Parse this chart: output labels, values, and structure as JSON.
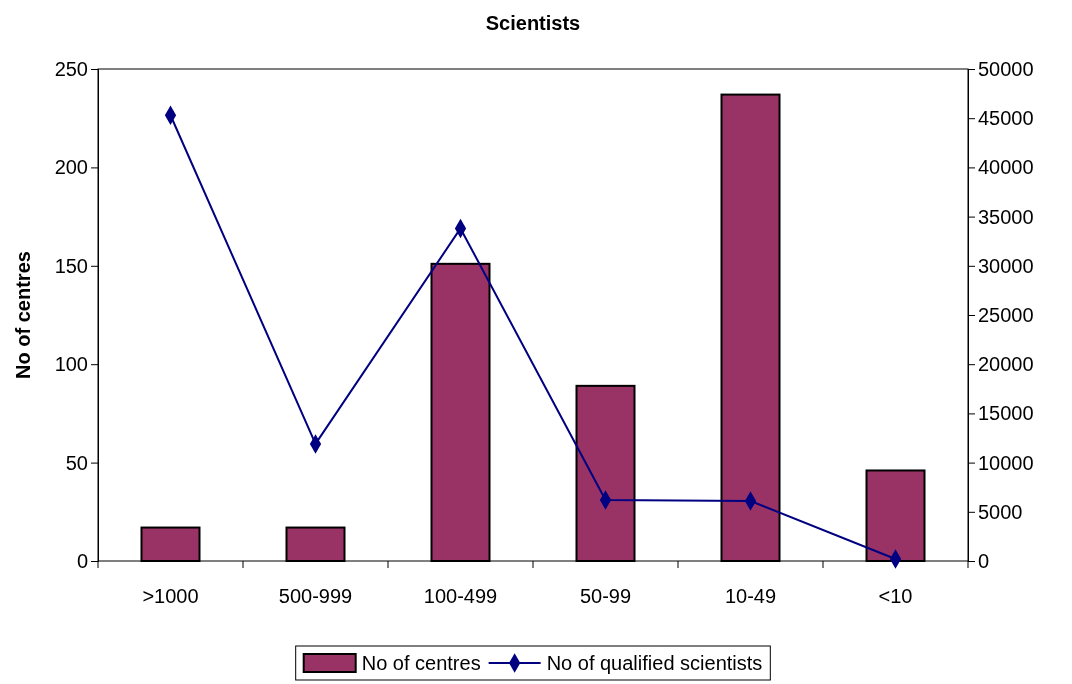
{
  "chart_data": {
    "type": "bar",
    "title": "Scientists",
    "ylabel": "No of centres",
    "categories": [
      ">1000",
      "500-999",
      "100-499",
      "50-99",
      "10-49",
      "<10"
    ],
    "series": [
      {
        "name": "No of centres",
        "color": "#993366",
        "values": [
          17,
          17,
          151,
          89,
          237,
          46
        ]
      },
      {
        "name": "No of qualified scientists",
        "type": "line",
        "axis": "y2",
        "color": "#000080",
        "marker": "diamond",
        "values": [
          45300,
          11900,
          33800,
          6200,
          6100,
          200
        ]
      }
    ],
    "ylim": [
      0,
      250
    ],
    "yticks": [
      0,
      50,
      100,
      150,
      200,
      250
    ],
    "y2lim": [
      0,
      50000
    ],
    "y2ticks": [
      0,
      5000,
      10000,
      15000,
      20000,
      25000,
      30000,
      35000,
      40000,
      45000,
      50000
    ],
    "grid": false,
    "legend": "bottom"
  }
}
